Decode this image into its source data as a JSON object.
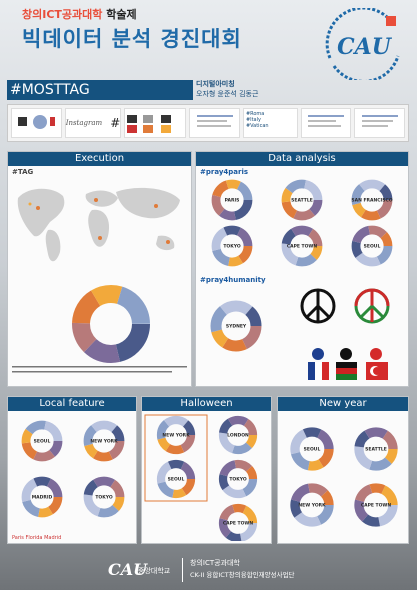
{
  "header": {
    "top_red": "창의ICT공과대학",
    "top_rest": " 학술제",
    "main_title": "빅데이터 분석 경진대회",
    "hashtag_bar": "#MOSTTAG",
    "team": "디지털아미칭",
    "members": "오자형 윤준석 김동근"
  },
  "seal": {
    "letters": "CAU",
    "ring_top": "CHUNG-ANG UNIVERSITY",
    "ring_year": "1918"
  },
  "logos": {
    "instagram": "Instagram",
    "hash": "#",
    "roma": "#Roma",
    "italy": "#Italy",
    "vatican": "#Vatican"
  },
  "sections": {
    "execution": "Execution",
    "data_analysis": "Data analysis",
    "local_feature": "Local feature",
    "halloween": "Halloween",
    "new_year": "New year"
  },
  "execution": {
    "sub": "#TAG"
  },
  "data_analysis": {
    "pray4paris": "#pray4paris",
    "pray4humanity": "#pray4humanity",
    "paris_donuts": [
      "PARIS",
      "SEATTLE",
      "SAN FRANCISCO",
      "TOKYO",
      "CAPE TOWN",
      "SEOUL"
    ],
    "humanity_donut": "SYDNEY"
  },
  "local_feature": {
    "donuts": [
      "SEOUL",
      "NEW YORK",
      "MADRID",
      "TOKYO"
    ],
    "caption": "Paris  Florida  Madrid"
  },
  "halloween": {
    "donuts": [
      "NEW YORK",
      "SEOUL",
      "LONDON",
      "TOKYO",
      "CAPE TOWN"
    ]
  },
  "new_year": {
    "donuts": [
      "SEOUL",
      "SEATTLE",
      "NEW YORK",
      "CAPE TOWN"
    ]
  },
  "footer": {
    "logo": "CAU",
    "uni": "중앙대학교",
    "right1": "창의ICT공과대학",
    "right2": "CK-II 융합ICT창의융합인재양성사업단"
  },
  "colors": {
    "accent_blue": "#15527f",
    "title_blue": "#1f6aa8",
    "title_red": "#e94e3a",
    "donut_palette": [
      "#4a5a8a",
      "#7c6b9a",
      "#b77a7a",
      "#e07b39",
      "#f2a93b",
      "#8aa0c8",
      "#b9c3df"
    ]
  }
}
